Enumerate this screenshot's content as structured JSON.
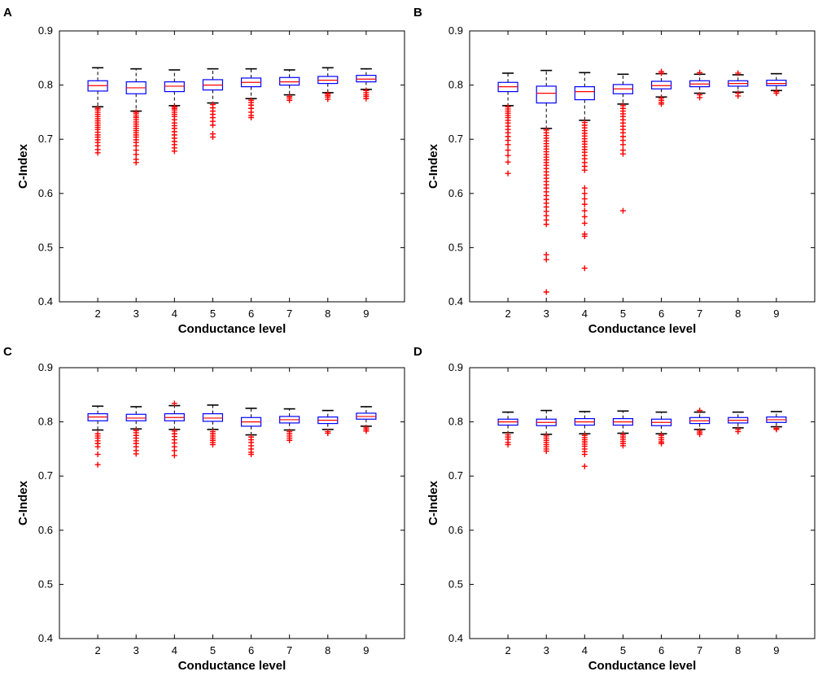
{
  "chart_data": [
    {
      "type": "box",
      "panel": "A",
      "xlabel": "Conductance level",
      "ylabel": "C-Index",
      "ylim": [
        0.4,
        0.9
      ],
      "yticks": [
        "0.4",
        "0.5",
        "0.6",
        "0.7",
        "0.8",
        "0.9"
      ],
      "categories": [
        "2",
        "3",
        "4",
        "5",
        "6",
        "7",
        "8",
        "9"
      ],
      "boxes": [
        {
          "q1": 0.789,
          "median": 0.799,
          "q3": 0.808,
          "whisker_low": 0.76,
          "whisker_high": 0.832,
          "outliers": [
            0.757,
            0.754,
            0.75,
            0.746,
            0.742,
            0.738,
            0.734,
            0.73,
            0.726,
            0.722,
            0.718,
            0.713,
            0.708,
            0.704,
            0.699,
            0.694,
            0.688,
            0.681,
            0.675
          ]
        },
        {
          "q1": 0.784,
          "median": 0.795,
          "q3": 0.806,
          "whisker_low": 0.752,
          "whisker_high": 0.83,
          "outliers": [
            0.75,
            0.747,
            0.743,
            0.74,
            0.736,
            0.732,
            0.728,
            0.724,
            0.72,
            0.716,
            0.712,
            0.708,
            0.704,
            0.699,
            0.694,
            0.688,
            0.68,
            0.672,
            0.663,
            0.657
          ]
        },
        {
          "q1": 0.788,
          "median": 0.798,
          "q3": 0.806,
          "whisker_low": 0.762,
          "whisker_high": 0.828,
          "outliers": [
            0.76,
            0.757,
            0.754,
            0.75,
            0.746,
            0.742,
            0.736,
            0.73,
            0.725,
            0.72,
            0.714,
            0.708,
            0.702,
            0.696,
            0.69,
            0.684,
            0.678
          ]
        },
        {
          "q1": 0.791,
          "median": 0.8,
          "q3": 0.81,
          "whisker_low": 0.767,
          "whisker_high": 0.83,
          "outliers": [
            0.764,
            0.758,
            0.752,
            0.746,
            0.74,
            0.733,
            0.726,
            0.71,
            0.704
          ]
        },
        {
          "q1": 0.797,
          "median": 0.805,
          "q3": 0.813,
          "whisker_low": 0.775,
          "whisker_high": 0.83,
          "outliers": [
            0.772,
            0.768,
            0.763,
            0.757,
            0.75,
            0.744,
            0.74
          ]
        },
        {
          "q1": 0.8,
          "median": 0.806,
          "q3": 0.814,
          "whisker_low": 0.782,
          "whisker_high": 0.828,
          "outliers": [
            0.779,
            0.776,
            0.772
          ]
        },
        {
          "q1": 0.803,
          "median": 0.809,
          "q3": 0.816,
          "whisker_low": 0.786,
          "whisker_high": 0.832,
          "outliers": [
            0.784,
            0.781,
            0.778,
            0.774
          ]
        },
        {
          "q1": 0.806,
          "median": 0.811,
          "q3": 0.818,
          "whisker_low": 0.792,
          "whisker_high": 0.83,
          "outliers": [
            0.79,
            0.786,
            0.782,
            0.779,
            0.775
          ]
        }
      ]
    },
    {
      "type": "box",
      "panel": "B",
      "xlabel": "Conductance level",
      "ylabel": "C-Index",
      "ylim": [
        0.4,
        0.9
      ],
      "yticks": [
        "0.4",
        "0.5",
        "0.6",
        "0.7",
        "0.8",
        "0.9"
      ],
      "categories": [
        "2",
        "3",
        "4",
        "5",
        "6",
        "7",
        "8",
        "9"
      ],
      "boxes": [
        {
          "q1": 0.788,
          "median": 0.797,
          "q3": 0.805,
          "whisker_low": 0.762,
          "whisker_high": 0.822,
          "outliers": [
            0.76,
            0.756,
            0.752,
            0.748,
            0.744,
            0.74,
            0.735,
            0.73,
            0.724,
            0.718,
            0.712,
            0.705,
            0.698,
            0.69,
            0.68,
            0.67,
            0.658,
            0.637
          ]
        },
        {
          "q1": 0.767,
          "median": 0.785,
          "q3": 0.798,
          "whisker_low": 0.72,
          "whisker_high": 0.827,
          "outliers": [
            0.717,
            0.712,
            0.707,
            0.702,
            0.697,
            0.692,
            0.687,
            0.682,
            0.677,
            0.672,
            0.667,
            0.662,
            0.657,
            0.652,
            0.646,
            0.64,
            0.634,
            0.628,
            0.622,
            0.616,
            0.61,
            0.603,
            0.596,
            0.589,
            0.582,
            0.575,
            0.567,
            0.559,
            0.551,
            0.543,
            0.487,
            0.478,
            0.418
          ]
        },
        {
          "q1": 0.773,
          "median": 0.788,
          "q3": 0.797,
          "whisker_low": 0.735,
          "whisker_high": 0.823,
          "outliers": [
            0.731,
            0.726,
            0.721,
            0.716,
            0.711,
            0.706,
            0.701,
            0.696,
            0.691,
            0.686,
            0.681,
            0.676,
            0.67,
            0.664,
            0.657,
            0.65,
            0.643,
            0.61,
            0.6,
            0.59,
            0.58,
            0.568,
            0.557,
            0.545,
            0.525,
            0.521,
            0.462
          ]
        },
        {
          "q1": 0.784,
          "median": 0.793,
          "q3": 0.801,
          "whisker_low": 0.765,
          "whisker_high": 0.82,
          "outliers": [
            0.762,
            0.757,
            0.752,
            0.747,
            0.742,
            0.736,
            0.73,
            0.724,
            0.718,
            0.712,
            0.705,
            0.698,
            0.69,
            0.68,
            0.673,
            0.568
          ]
        },
        {
          "q1": 0.793,
          "median": 0.799,
          "q3": 0.807,
          "whisker_low": 0.778,
          "whisker_high": 0.821,
          "outliers": [
            0.825,
            0.822,
            0.776,
            0.772,
            0.768,
            0.765
          ]
        },
        {
          "q1": 0.797,
          "median": 0.802,
          "q3": 0.808,
          "whisker_low": 0.785,
          "whisker_high": 0.82,
          "outliers": [
            0.823,
            0.782,
            0.777
          ]
        },
        {
          "q1": 0.798,
          "median": 0.803,
          "q3": 0.808,
          "whisker_low": 0.787,
          "whisker_high": 0.819,
          "outliers": [
            0.822,
            0.785,
            0.78
          ]
        },
        {
          "q1": 0.799,
          "median": 0.803,
          "q3": 0.809,
          "whisker_low": 0.79,
          "whisker_high": 0.821,
          "outliers": [
            0.788,
            0.785
          ]
        }
      ]
    },
    {
      "type": "box",
      "panel": "C",
      "xlabel": "Conductance level",
      "ylabel": "C-Index",
      "ylim": [
        0.4,
        0.9
      ],
      "yticks": [
        "0.4",
        "0.5",
        "0.6",
        "0.7",
        "0.8",
        "0.9"
      ],
      "categories": [
        "2",
        "3",
        "4",
        "5",
        "6",
        "7",
        "8",
        "9"
      ],
      "boxes": [
        {
          "q1": 0.802,
          "median": 0.809,
          "q3": 0.815,
          "whisker_low": 0.785,
          "whisker_high": 0.829,
          "outliers": [
            0.778,
            0.774,
            0.77,
            0.765,
            0.76,
            0.754,
            0.74,
            0.721
          ]
        },
        {
          "q1": 0.802,
          "median": 0.807,
          "q3": 0.814,
          "whisker_low": 0.787,
          "whisker_high": 0.828,
          "outliers": [
            0.784,
            0.78,
            0.775,
            0.77,
            0.765,
            0.76,
            0.754,
            0.747,
            0.741
          ]
        },
        {
          "q1": 0.802,
          "median": 0.808,
          "q3": 0.815,
          "whisker_low": 0.786,
          "whisker_high": 0.83,
          "outliers": [
            0.834,
            0.783,
            0.778,
            0.773,
            0.767,
            0.761,
            0.754,
            0.747,
            0.738
          ]
        },
        {
          "q1": 0.801,
          "median": 0.807,
          "q3": 0.815,
          "whisker_low": 0.786,
          "whisker_high": 0.831,
          "outliers": [
            0.782,
            0.778,
            0.774,
            0.77,
            0.766,
            0.762,
            0.758
          ]
        },
        {
          "q1": 0.792,
          "median": 0.8,
          "q3": 0.808,
          "whisker_low": 0.776,
          "whisker_high": 0.825,
          "outliers": [
            0.772,
            0.767,
            0.762,
            0.756,
            0.75,
            0.744,
            0.74
          ]
        },
        {
          "q1": 0.798,
          "median": 0.804,
          "q3": 0.81,
          "whisker_low": 0.785,
          "whisker_high": 0.824,
          "outliers": [
            0.782,
            0.778,
            0.774,
            0.77,
            0.766
          ]
        },
        {
          "q1": 0.797,
          "median": 0.803,
          "q3": 0.809,
          "whisker_low": 0.786,
          "whisker_high": 0.821,
          "outliers": [
            0.782,
            0.779
          ]
        },
        {
          "q1": 0.805,
          "median": 0.81,
          "q3": 0.816,
          "whisker_low": 0.792,
          "whisker_high": 0.828,
          "outliers": [
            0.789,
            0.786,
            0.783
          ]
        }
      ]
    },
    {
      "type": "box",
      "panel": "D",
      "xlabel": "Conductance level",
      "ylabel": "C-Index",
      "ylim": [
        0.4,
        0.9
      ],
      "yticks": [
        "0.4",
        "0.5",
        "0.6",
        "0.7",
        "0.8",
        "0.9"
      ],
      "categories": [
        "2",
        "3",
        "4",
        "5",
        "6",
        "7",
        "8",
        "9"
      ],
      "boxes": [
        {
          "q1": 0.794,
          "median": 0.8,
          "q3": 0.805,
          "whisker_low": 0.78,
          "whisker_high": 0.818,
          "outliers": [
            0.776,
            0.772,
            0.768,
            0.762,
            0.758
          ]
        },
        {
          "q1": 0.793,
          "median": 0.799,
          "q3": 0.805,
          "whisker_low": 0.777,
          "whisker_high": 0.821,
          "outliers": [
            0.774,
            0.77,
            0.766,
            0.762,
            0.758,
            0.754,
            0.75,
            0.746
          ]
        },
        {
          "q1": 0.794,
          "median": 0.8,
          "q3": 0.806,
          "whisker_low": 0.778,
          "whisker_high": 0.819,
          "outliers": [
            0.775,
            0.771,
            0.767,
            0.763,
            0.759,
            0.755,
            0.75,
            0.745,
            0.74,
            0.718
          ]
        },
        {
          "q1": 0.794,
          "median": 0.8,
          "q3": 0.806,
          "whisker_low": 0.779,
          "whisker_high": 0.82,
          "outliers": [
            0.776,
            0.772,
            0.768,
            0.764,
            0.76,
            0.756
          ]
        },
        {
          "q1": 0.793,
          "median": 0.799,
          "q3": 0.805,
          "whisker_low": 0.778,
          "whisker_high": 0.818,
          "outliers": [
            0.775,
            0.771,
            0.767,
            0.763,
            0.76
          ]
        },
        {
          "q1": 0.797,
          "median": 0.802,
          "q3": 0.808,
          "whisker_low": 0.786,
          "whisker_high": 0.818,
          "outliers": [
            0.821,
            0.783,
            0.78,
            0.777
          ]
        },
        {
          "q1": 0.798,
          "median": 0.803,
          "q3": 0.808,
          "whisker_low": 0.789,
          "whisker_high": 0.818,
          "outliers": [
            0.786,
            0.782
          ]
        },
        {
          "q1": 0.799,
          "median": 0.804,
          "q3": 0.809,
          "whisker_low": 0.791,
          "whisker_high": 0.819,
          "outliers": [
            0.788,
            0.786
          ]
        }
      ]
    }
  ],
  "colors": {
    "box": "#0000ff",
    "median": "#ff0000",
    "outlier": "#ff0000",
    "whisker": "#000000",
    "axis": "#000000"
  }
}
